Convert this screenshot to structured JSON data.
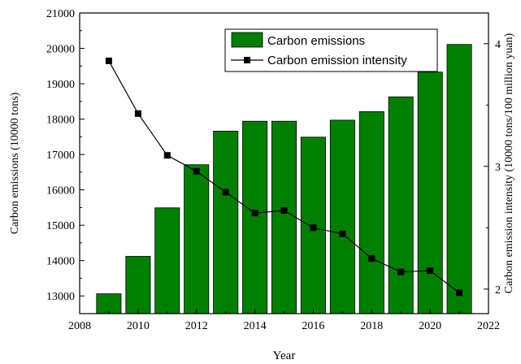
{
  "chart_data": {
    "type": "bar+line",
    "x": [
      2009,
      2010,
      2011,
      2012,
      2013,
      2014,
      2015,
      2016,
      2017,
      2018,
      2019,
      2020,
      2021
    ],
    "series": [
      {
        "name": "Carbon emissions",
        "type": "bar",
        "axis": "left",
        "color": "#007f00",
        "values": [
          13060,
          14120,
          15490,
          16710,
          17660,
          17940,
          17940,
          17490,
          17970,
          18210,
          18630,
          19330,
          20110
        ]
      },
      {
        "name": "Carbon emission intensity",
        "type": "line",
        "axis": "right",
        "color": "#000000",
        "marker": "square",
        "values": [
          3.86,
          3.43,
          3.09,
          2.96,
          2.79,
          2.62,
          2.64,
          2.5,
          2.45,
          2.25,
          2.14,
          2.15,
          1.97
        ]
      }
    ],
    "xlabel": "Year",
    "ylabel_left": "Carbon emissions (10000 tons)",
    "ylabel_right": "Carbon emission intensity (10000 tons/100 million yuan)",
    "xlim": [
      2008,
      2022
    ],
    "ylim_left": [
      12500,
      21000
    ],
    "ylim_right": [
      1.8,
      4.25
    ],
    "xticks": [
      "2008",
      "2010",
      "2012",
      "2014",
      "2016",
      "2018",
      "2020",
      "2022"
    ],
    "yticks_left": [
      "13000",
      "14000",
      "15000",
      "16000",
      "17000",
      "18000",
      "19000",
      "20000",
      "21000"
    ],
    "yticks_right": [
      "2",
      "3",
      "4"
    ],
    "legend_position": "top-right",
    "grid": false
  }
}
